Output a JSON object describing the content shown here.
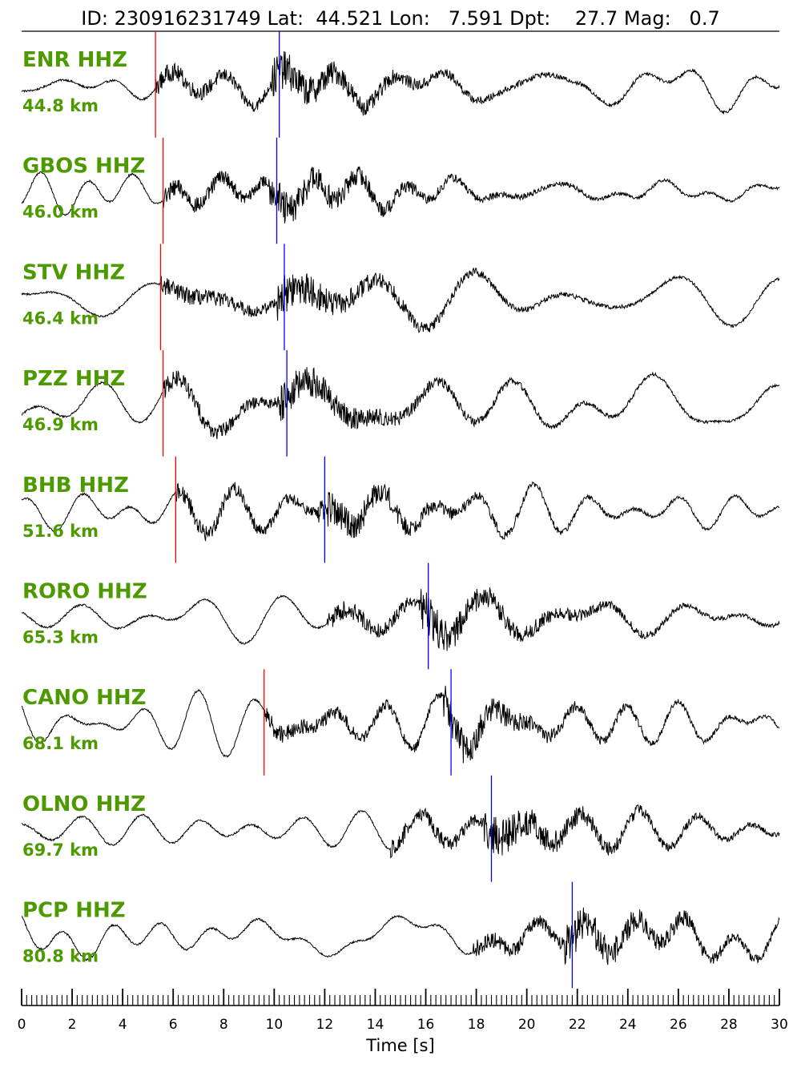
{
  "chart_data": {
    "type": "line",
    "header": {
      "id_label": "ID:",
      "id": "230916231749",
      "lat_label": "Lat:",
      "lat": "44.521",
      "lon_label": "Lon:",
      "lon": "7.591",
      "dpt_label": "Dpt:",
      "dpt": "27.7",
      "mag_label": "Mag:",
      "mag": "0.7"
    },
    "xlabel": "Time [s]",
    "xlim": [
      0,
      30
    ],
    "x_ticks": [
      "0",
      "2",
      "4",
      "6",
      "8",
      "10",
      "12",
      "14",
      "16",
      "18",
      "20",
      "22",
      "24",
      "26",
      "28",
      "30"
    ],
    "pick_colors": {
      "p_pick": "#ff0000",
      "s_pick": "#0000ff",
      "trace": "#000000",
      "label": "#4d9a00"
    },
    "series": [
      {
        "name": "ENR HHZ",
        "distance": "44.8 km",
        "p_pick": 5.3,
        "s_pick": 10.2
      },
      {
        "name": "GBOS HHZ",
        "distance": "46.0 km",
        "p_pick": 5.6,
        "s_pick": 10.1
      },
      {
        "name": "STV HHZ",
        "distance": "46.4 km",
        "p_pick": 5.5,
        "s_pick": 10.4
      },
      {
        "name": "PZZ HHZ",
        "distance": "46.9 km",
        "p_pick": 5.6,
        "s_pick": 10.5
      },
      {
        "name": "BHB HHZ",
        "distance": "51.6 km",
        "p_pick": 6.1,
        "s_pick": 12.0
      },
      {
        "name": "RORO HHZ",
        "distance": "65.3 km",
        "p_pick": null,
        "s_pick": 16.1
      },
      {
        "name": "CANO HHZ",
        "distance": "68.1 km",
        "p_pick": 9.6,
        "s_pick": 17.0
      },
      {
        "name": "OLNO HHZ",
        "distance": "69.7 km",
        "p_pick": null,
        "s_pick": 18.6
      },
      {
        "name": "PCP HHZ",
        "distance": "80.8 km",
        "p_pick": null,
        "s_pick": 21.8
      }
    ]
  }
}
